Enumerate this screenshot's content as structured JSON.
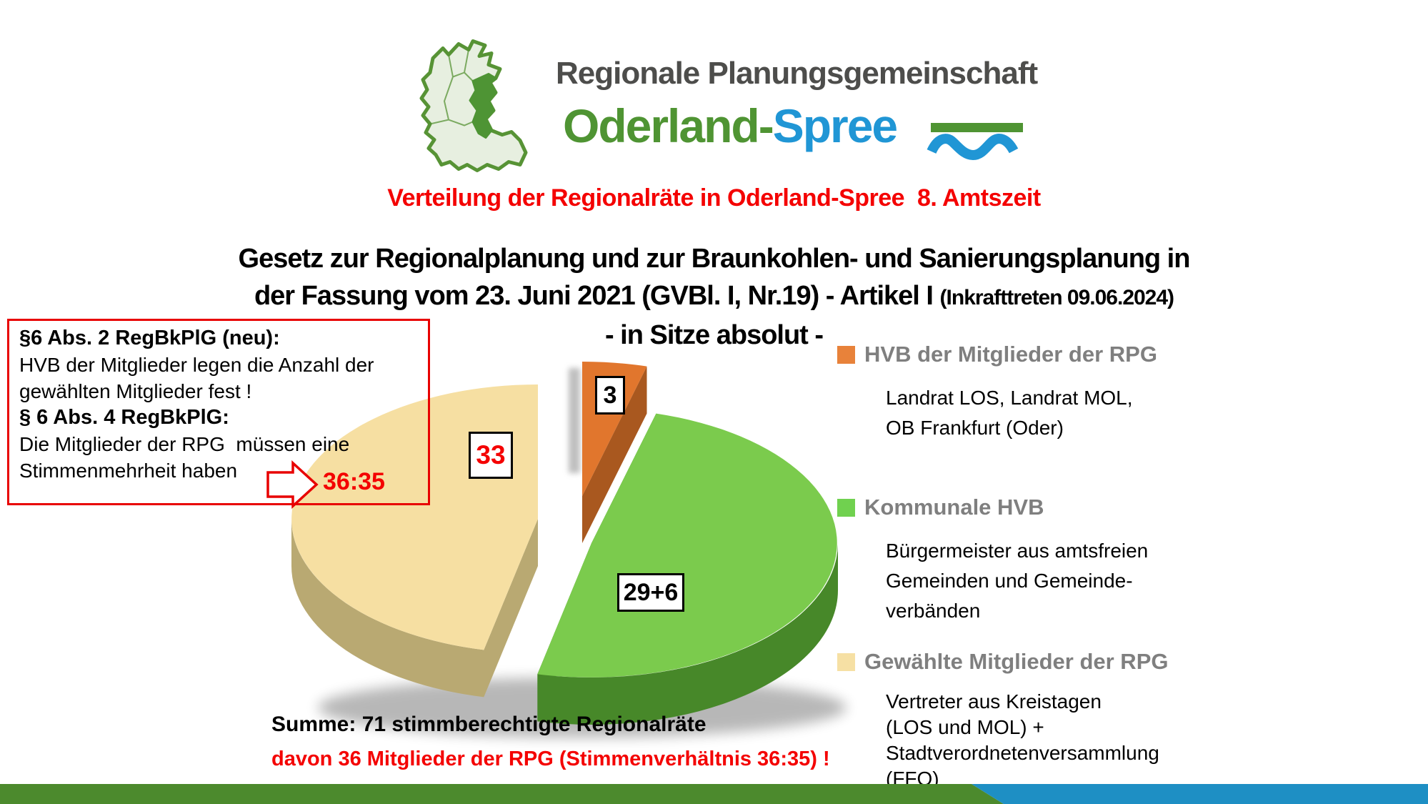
{
  "logo": {
    "org_name": "Regionale Planungsgemeinschaft",
    "brand_green": "Oderland-",
    "brand_blue": "Spree",
    "map_fill": "#e7efe0",
    "map_stroke": "#579335",
    "map_highlight": "#4e9434",
    "wave_green": "#4f9433",
    "wave_blue": "#2096d5"
  },
  "title": "Verteilung der Regionalräte in Oderland-Spree  8. Amtszeit",
  "law_heading": {
    "line1": "Gesetz zur Regionalplanung und zur Braunkohlen- und Sanierungsplanung in",
    "line2_main": "der Fassung vom 23. Juni 2021 (GVBl. I, Nr.19) - Artikel I",
    "line2_small": "(Inkrafttreten 09.06.2024)",
    "line3": "- in Sitze absolut -"
  },
  "note_box": {
    "line1": "§6 Abs. 2 RegBkPlG (neu):",
    "line2": "HVB der Mitglieder legen die Anzahl der",
    "line3": "gewählten Mitglieder fest !",
    "line4": "§ 6 Abs. 4 RegBkPlG:",
    "line5": "Die Mitglieder der RPG  müssen eine",
    "line6": "Stimmenmehrheit haben",
    "ratio": "36:35"
  },
  "chart_data": {
    "type": "pie",
    "style": "3d-exploded",
    "title": "Verteilung der Regionalräte in Oderland-Spree 8. Amtszeit - in Sitze absolut -",
    "total": 71,
    "start_angle_deg": 0,
    "direction": "clockwise",
    "slices": [
      {
        "name": "HVB der Mitglieder der RPG",
        "value": 3,
        "label": "3",
        "label_color": "#000000",
        "color": "#e1762d",
        "side_color": "#a9581f"
      },
      {
        "name": "Kommunale HVB",
        "value": 35,
        "label": "29+6",
        "label_color": "#000000",
        "color": "#7bcb4d",
        "side_color": "#478829"
      },
      {
        "name": "Gewählte Mitglieder der RPG",
        "value": 33,
        "label": "33",
        "label_color": "#f40000",
        "color": "#f6dfa2",
        "side_color": "#b9a972"
      }
    ],
    "legend_position": "right"
  },
  "legend": {
    "items": [
      {
        "title": "HVB der Mitglieder der RPG",
        "color": "#e8823a",
        "desc_lines": [
          "Landrat LOS, Landrat MOL,",
          "OB Frankfurt (Oder)"
        ]
      },
      {
        "title": "Kommunale HVB",
        "color": "#70d14f",
        "desc_lines": [
          "Bürgermeister aus amtsfreien",
          "Gemeinden und Gemeinde-",
          "verbänden"
        ]
      },
      {
        "title": "Gewählte Mitglieder der RPG",
        "color": "#f6e0a4",
        "desc_lines": [
          "Vertreter aus Kreistagen",
          "(LOS und MOL) +",
          "Stadtverordnetenversammlung",
          "(FFO)"
        ]
      }
    ]
  },
  "summary": {
    "line1": "Summe: 71 stimmberechtigte Regionalräte",
    "line2": "davon 36 Mitglieder der RPG (Stimmenverhältnis 36:35) !"
  },
  "footer_bar": {
    "green": "#4c8a2d",
    "blue": "#1e8fc4"
  }
}
